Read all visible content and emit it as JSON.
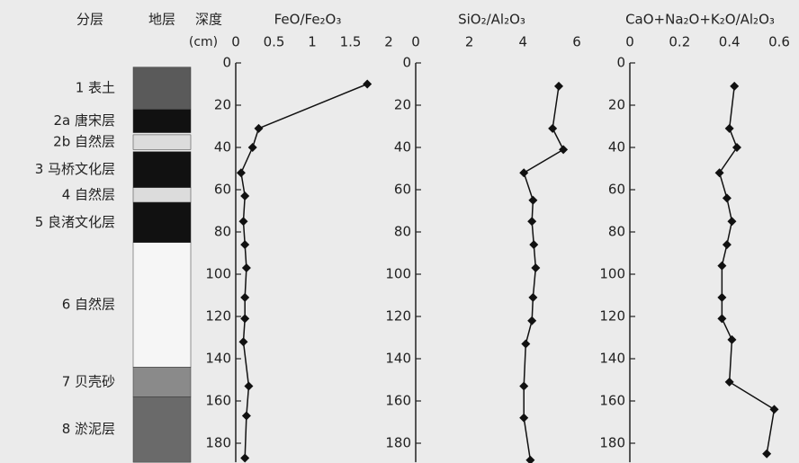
{
  "headers": [
    "分层",
    "地层"
  ],
  "layers": [
    {
      "label": "1 表土",
      "top": 2,
      "bottom": 22,
      "fill": "#5a5a5a"
    },
    {
      "label": "2a 唐宋层",
      "top": 22,
      "bottom": 33,
      "fill": "#111111"
    },
    {
      "label": "2b 自然层",
      "top": 34,
      "bottom": 41,
      "fill": "#dcdcdc"
    },
    {
      "label": "3 马桥文化层",
      "top": 42,
      "bottom": 59,
      "fill": "#111111"
    },
    {
      "label": "4 自然层",
      "top": 59,
      "bottom": 66,
      "fill": "#dcdcdc"
    },
    {
      "label": "5 良渚文化层",
      "top": 66,
      "bottom": 85,
      "fill": "#111111"
    },
    {
      "label": "6 自然层",
      "top": 85,
      "bottom": 144,
      "fill": "#f6f6f6"
    },
    {
      "label": "7 贝壳砂",
      "top": 144,
      "bottom": 158,
      "fill": "#8a8a8a"
    },
    {
      "label": "8 淤泥层",
      "top": 158,
      "bottom": 189,
      "fill": "#6a6a6a"
    }
  ],
  "chart_data": [
    {
      "type": "line",
      "title": "FeO/Fe₂O₃",
      "ylabel": "深度",
      "yunit": "(cm)",
      "color": "#111111",
      "y": [
        10,
        31,
        40,
        52,
        63,
        75,
        86,
        97,
        111,
        121,
        132,
        153,
        167,
        187
      ],
      "values": [
        1.72,
        0.3,
        0.22,
        0.07,
        0.12,
        0.1,
        0.12,
        0.14,
        0.12,
        0.12,
        0.1,
        0.17,
        0.14,
        0.12
      ],
      "xlim": [
        0,
        2
      ],
      "xticks": [
        0,
        0.5,
        1,
        1.5,
        2
      ],
      "ylim": [
        0,
        189
      ],
      "yticks": [
        0,
        20,
        40,
        60,
        80,
        100,
        120,
        140,
        160,
        180
      ]
    },
    {
      "type": "line",
      "title": "SiO₂/Al₂O₃",
      "color": "#111111",
      "y": [
        11,
        31,
        41,
        52,
        65,
        75,
        86,
        97,
        111,
        122,
        133,
        153,
        168,
        188
      ],
      "values": [
        5.33,
        5.1,
        5.5,
        4.03,
        4.37,
        4.33,
        4.4,
        4.47,
        4.37,
        4.33,
        4.1,
        4.03,
        4.03,
        4.27
      ],
      "xlim": [
        0,
        6
      ],
      "xticks": [
        0,
        2,
        4,
        6
      ],
      "ylim": [
        0,
        189
      ],
      "yticks": [
        0,
        20,
        40,
        60,
        80,
        100,
        120,
        140,
        160,
        180
      ]
    },
    {
      "type": "line",
      "title": "CaO+Na₂O+K₂O/Al₂O₃",
      "color": "#111111",
      "y": [
        11,
        31,
        40,
        52,
        64,
        75,
        86,
        96,
        111,
        121,
        131,
        151,
        164,
        185
      ],
      "values": [
        0.42,
        0.4,
        0.43,
        0.36,
        0.39,
        0.41,
        0.39,
        0.37,
        0.37,
        0.37,
        0.41,
        0.4,
        0.58,
        0.55
      ],
      "xlim": [
        0,
        0.6
      ],
      "xticks": [
        0,
        0.2,
        0.4,
        0.6
      ],
      "ylim": [
        0,
        189
      ],
      "yticks": [
        0,
        20,
        40,
        60,
        80,
        100,
        120,
        140,
        160,
        180
      ]
    }
  ]
}
